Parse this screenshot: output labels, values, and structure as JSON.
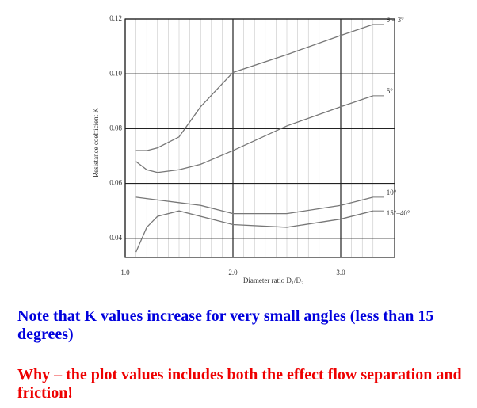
{
  "chart_data": {
    "type": "line",
    "xlabel": "Diameter ratio D₁/D₂",
    "ylabel": "Resistance coefficient K",
    "x": [
      1.1,
      1.2,
      1.3,
      1.5,
      1.7,
      2.0,
      2.5,
      3.0,
      3.3
    ],
    "series": [
      {
        "name": "θ = 3°",
        "color": "#777777",
        "values": [
          0.072,
          0.072,
          0.073,
          0.077,
          0.088,
          0.1005,
          0.107,
          0.114,
          0.118
        ]
      },
      {
        "name": "5°",
        "color": "#777777",
        "values": [
          0.068,
          0.065,
          0.064,
          0.065,
          0.067,
          0.072,
          0.081,
          0.088,
          0.092
        ]
      },
      {
        "name": "10°",
        "color": "#777777",
        "values": [
          0.055,
          0.0545,
          0.054,
          0.053,
          0.052,
          0.049,
          0.049,
          0.052,
          0.055
        ]
      },
      {
        "name": "15°–40°",
        "color": "#777777",
        "values": [
          0.035,
          0.044,
          0.048,
          0.05,
          0.048,
          0.045,
          0.044,
          0.047,
          0.05
        ]
      }
    ],
    "xlim": [
      1.0,
      3.5
    ],
    "ylim": [
      0.033,
      0.12
    ],
    "xticks": [
      {
        "value": 1,
        "label": "1.0"
      },
      {
        "value": 2,
        "label": "2.0"
      },
      {
        "value": 3,
        "label": "3.0"
      }
    ],
    "yticks": [
      0.04,
      0.06,
      0.08,
      {
        "value": 0.1,
        "label": "0.10"
      },
      0.12
    ],
    "grid": true
  },
  "notes": [
    "Note that K values increase for very small angles (less than 15 degrees)",
    "Why – the plot values includes both the effect flow separation and friction!"
  ]
}
